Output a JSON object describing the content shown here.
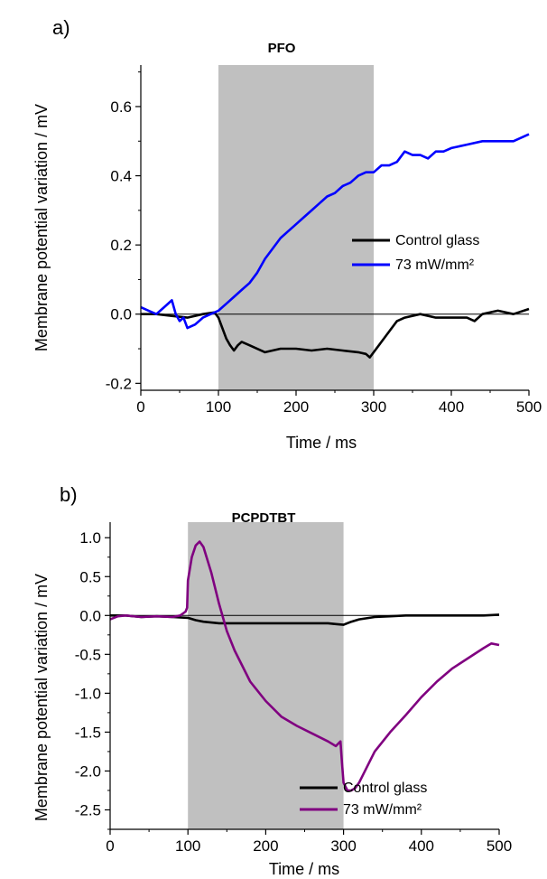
{
  "chart_data": [
    {
      "panel_label": "a)",
      "type": "line",
      "title": "PFO",
      "xlabel": "Time / ms",
      "ylabel": "Membrane potential variation / mV",
      "xlim": [
        0,
        500
      ],
      "ylim": [
        -0.22,
        0.72
      ],
      "xticks": [
        0,
        100,
        200,
        300,
        400,
        500
      ],
      "yticks": [
        -0.2,
        0.0,
        0.2,
        0.4,
        0.6
      ],
      "ytick_labels": [
        "-0.2",
        "0.0",
        "0.2",
        "0.4",
        "0.6"
      ],
      "light_on_interval": [
        100,
        300
      ],
      "zero_line": 0,
      "legend_position": "right",
      "series": [
        {
          "name": "Control glass",
          "color": "#000000",
          "x": [
            0,
            20,
            40,
            60,
            80,
            95,
            100,
            105,
            110,
            115,
            120,
            125,
            130,
            140,
            160,
            180,
            200,
            220,
            240,
            260,
            280,
            290,
            295,
            300,
            310,
            320,
            330,
            340,
            360,
            380,
            400,
            420,
            430,
            440,
            460,
            480,
            500
          ],
          "y": [
            0.0,
            0.0,
            -0.005,
            -0.01,
            0.0,
            0.005,
            -0.01,
            -0.04,
            -0.07,
            -0.09,
            -0.105,
            -0.09,
            -0.08,
            -0.09,
            -0.11,
            -0.1,
            -0.1,
            -0.105,
            -0.1,
            -0.105,
            -0.11,
            -0.115,
            -0.125,
            -0.11,
            -0.08,
            -0.05,
            -0.02,
            -0.01,
            0.0,
            -0.01,
            -0.01,
            -0.01,
            -0.02,
            0.0,
            0.01,
            0.0,
            0.015
          ]
        },
        {
          "name": "73 mW/mm²",
          "color": "#0000ff",
          "x": [
            0,
            10,
            20,
            30,
            40,
            45,
            50,
            55,
            60,
            70,
            80,
            90,
            100,
            110,
            120,
            130,
            140,
            150,
            160,
            170,
            180,
            190,
            200,
            210,
            220,
            230,
            240,
            250,
            260,
            270,
            280,
            290,
            300,
            310,
            320,
            330,
            340,
            350,
            360,
            370,
            380,
            390,
            400,
            420,
            440,
            460,
            480,
            500
          ],
          "y": [
            0.02,
            0.01,
            0.0,
            0.02,
            0.04,
            0.0,
            -0.02,
            -0.01,
            -0.04,
            -0.03,
            -0.01,
            0.0,
            0.01,
            0.03,
            0.05,
            0.07,
            0.09,
            0.12,
            0.16,
            0.19,
            0.22,
            0.24,
            0.26,
            0.28,
            0.3,
            0.32,
            0.34,
            0.35,
            0.37,
            0.38,
            0.4,
            0.41,
            0.41,
            0.43,
            0.43,
            0.44,
            0.47,
            0.46,
            0.46,
            0.45,
            0.47,
            0.47,
            0.48,
            0.49,
            0.5,
            0.5,
            0.5,
            0.52
          ]
        }
      ]
    },
    {
      "panel_label": "b)",
      "type": "line",
      "title": "PCPDTBT",
      "xlabel": "Time / ms",
      "ylabel": "Membrane potential variation / mV",
      "xlim": [
        0,
        500
      ],
      "ylim": [
        -2.75,
        1.2
      ],
      "xticks": [
        0,
        100,
        200,
        300,
        400,
        500
      ],
      "yticks": [
        -2.5,
        -2.0,
        -1.5,
        -1.0,
        -0.5,
        0.0,
        0.5,
        1.0
      ],
      "ytick_labels": [
        "-2.5",
        "-2.0",
        "-1.5",
        "-1.0",
        "-0.5",
        "0.0",
        "0.5",
        "1.0"
      ],
      "light_on_interval": [
        100,
        300
      ],
      "zero_line": 0,
      "legend_position": "bottom-right",
      "series": [
        {
          "name": "Control glass",
          "color": "#000000",
          "x": [
            0,
            20,
            40,
            60,
            80,
            100,
            110,
            120,
            140,
            160,
            180,
            200,
            220,
            240,
            260,
            280,
            290,
            300,
            310,
            320,
            340,
            360,
            380,
            400,
            420,
            440,
            460,
            480,
            500
          ],
          "y": [
            0.0,
            0.0,
            -0.02,
            -0.01,
            -0.02,
            -0.03,
            -0.06,
            -0.08,
            -0.1,
            -0.1,
            -0.1,
            -0.1,
            -0.1,
            -0.1,
            -0.1,
            -0.1,
            -0.11,
            -0.12,
            -0.08,
            -0.05,
            -0.02,
            -0.01,
            0.0,
            0.0,
            0.0,
            0.0,
            0.0,
            0.0,
            0.01
          ]
        },
        {
          "name": "73 mW/mm²",
          "color": "#800080",
          "x": [
            0,
            10,
            20,
            40,
            60,
            80,
            90,
            97,
            99,
            100,
            105,
            110,
            115,
            120,
            130,
            140,
            150,
            160,
            180,
            200,
            220,
            240,
            260,
            280,
            290,
            296,
            298,
            300,
            305,
            310,
            315,
            320,
            330,
            340,
            360,
            380,
            400,
            420,
            440,
            460,
            480,
            490,
            500
          ],
          "y": [
            -0.05,
            -0.01,
            0.0,
            -0.02,
            -0.01,
            -0.02,
            0.0,
            0.05,
            0.1,
            0.45,
            0.75,
            0.9,
            0.95,
            0.88,
            0.55,
            0.15,
            -0.2,
            -0.45,
            -0.85,
            -1.1,
            -1.3,
            -1.42,
            -1.52,
            -1.62,
            -1.68,
            -1.62,
            -1.9,
            -2.15,
            -2.25,
            -2.25,
            -2.22,
            -2.15,
            -1.95,
            -1.75,
            -1.5,
            -1.28,
            -1.05,
            -0.85,
            -0.68,
            -0.55,
            -0.42,
            -0.36,
            -0.38
          ]
        }
      ]
    }
  ]
}
